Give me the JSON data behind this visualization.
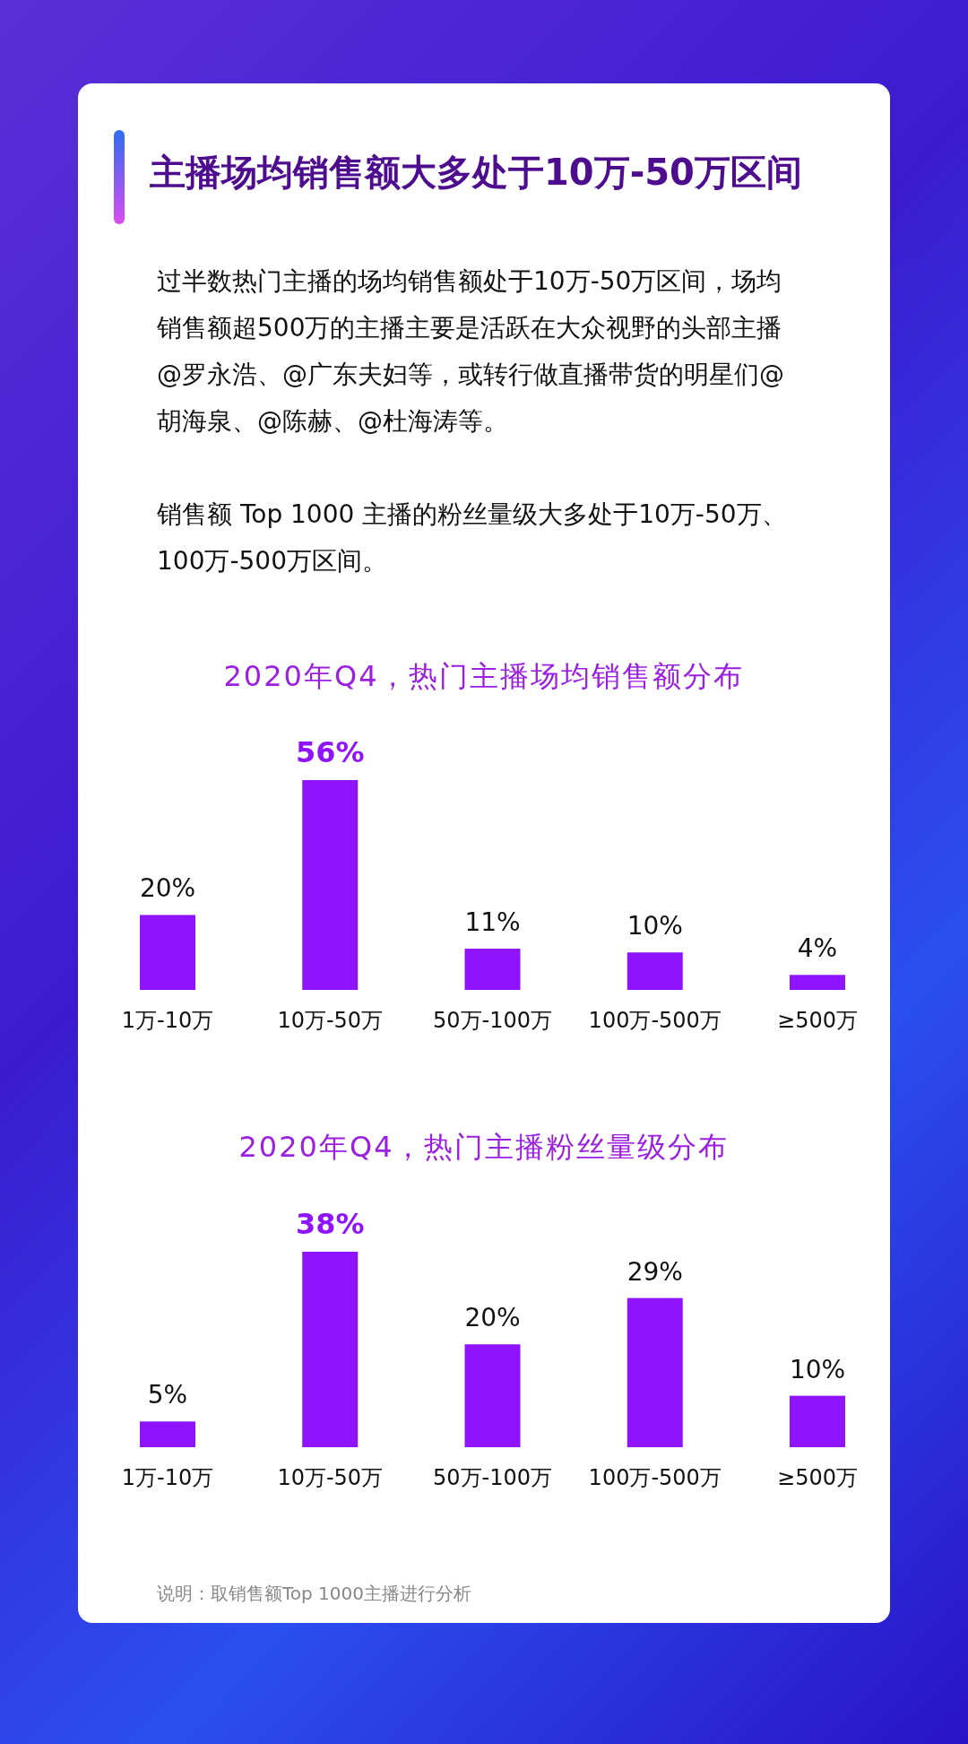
{
  "chart_data": [
    {
      "type": "other",
      "title": "主播场均销售额大多处于10万-50万区间",
      "annotations": [
        "过半数热门主播的场均销售额处于10万-50万区间，场均销售额超500万的主播主要是活跃在大众视野的头部主播@罗永浩、@广东夫妇等，或转行做直播带货的明星们@胡海泉、@陈赫、@杜海涛等。",
        "销售额 Top 1000 主播的粉丝量级大多处于10万-50万、100万-500万区间。"
      ]
    },
    {
      "type": "bar",
      "title": "2020年Q4，热门主播场均销售额分布",
      "categories": [
        "1万-10万",
        "10万-50万",
        "50万-100万",
        "100万-500万",
        "≥500万"
      ],
      "values": [
        20,
        56,
        11,
        10,
        4
      ],
      "color": "#9013fe",
      "value_labels": [
        "20%",
        "**56%**",
        "11%",
        "10%",
        "4%"
      ]
    },
    {
      "type": "bar",
      "title": "2020年Q4，热门主播粉丝量级分布",
      "categories": [
        "1万-10万",
        "10万-50万",
        "50万-100万",
        "100万-500万",
        "≥500万"
      ],
      "values": [
        5,
        38,
        20,
        29,
        10
      ],
      "color": "#9013fe",
      "value_labels": [
        "5%",
        "**38%**",
        "20%",
        "29%",
        "10%"
      ],
      "annotations": [
        "说明：取销售额Top 1000主播进行分析"
      ]
    }
  ]
}
